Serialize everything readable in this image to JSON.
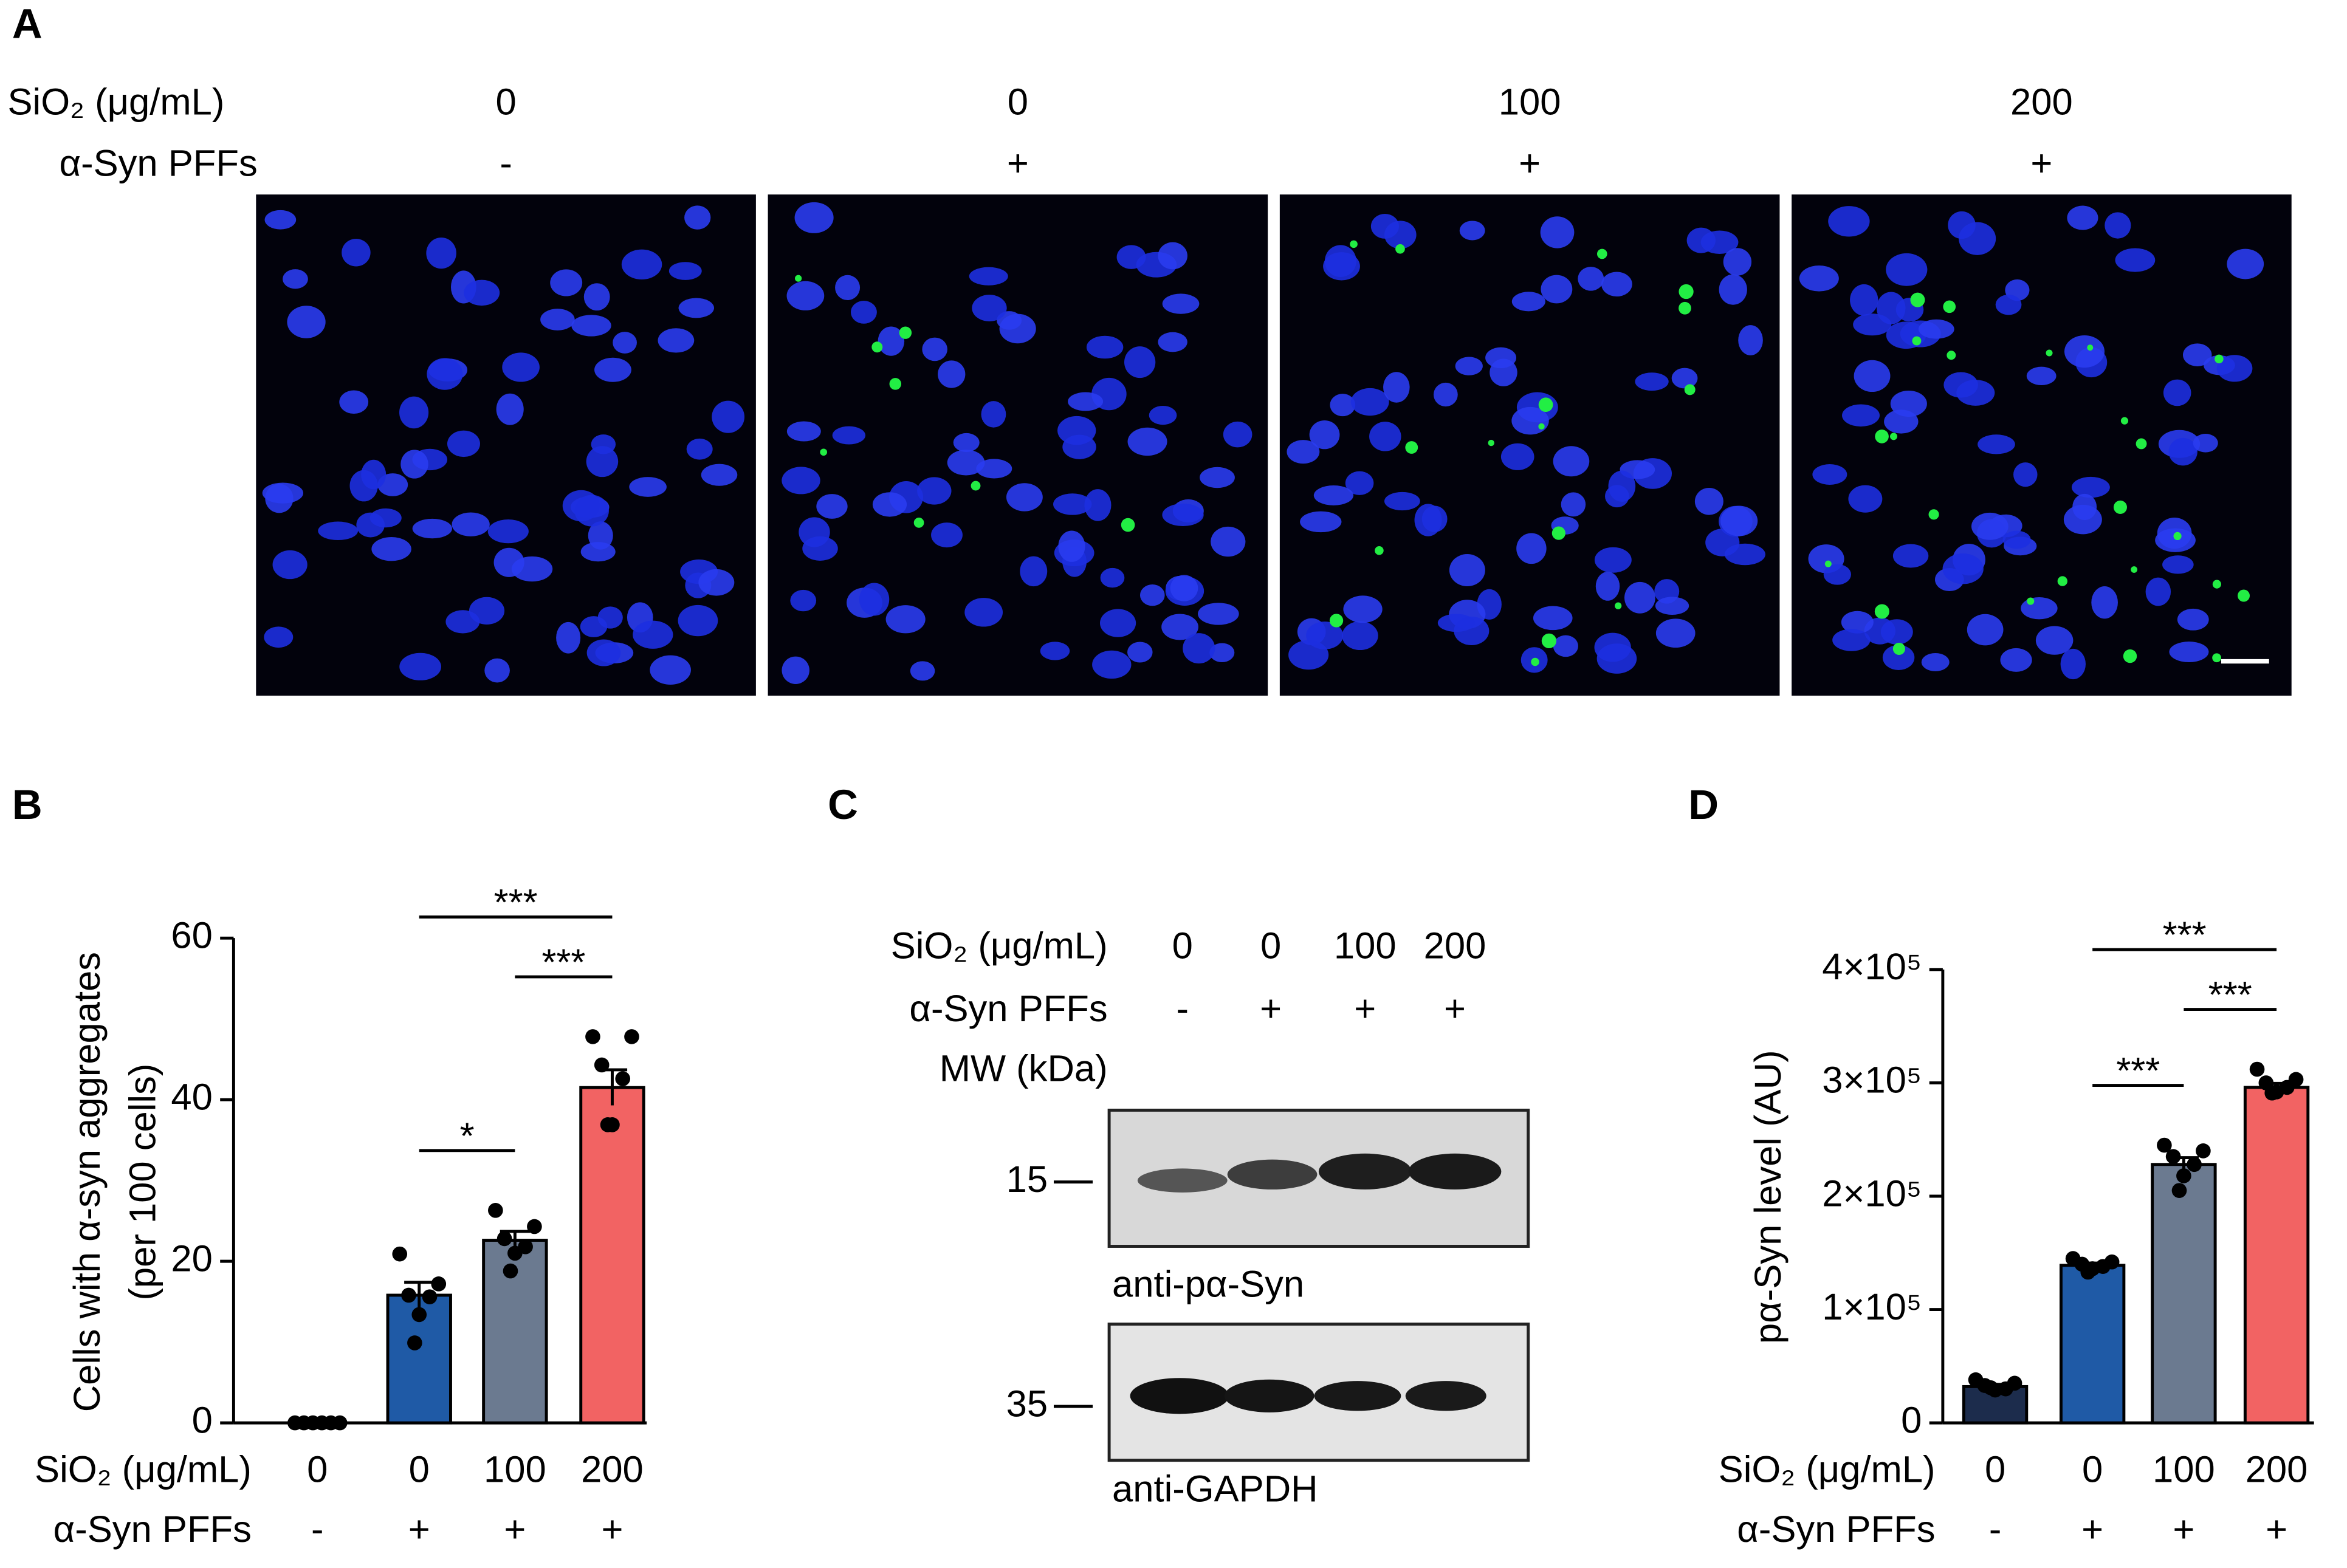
{
  "panel_labels": [
    "A",
    "B",
    "C",
    "D"
  ],
  "panel_a": {
    "row_labels": [
      "SiO₂ (μg/mL)",
      "α-Syn PFFs"
    ],
    "doses": [
      "0",
      "0",
      "100",
      "200"
    ],
    "pffs": [
      "-",
      "+",
      "+",
      "+"
    ]
  },
  "panel_c": {
    "row_labels": [
      "SiO₂ (μg/mL)",
      "α-Syn PFFs",
      "MW (kDa)"
    ],
    "doses": [
      "0",
      "0",
      "100",
      "200"
    ],
    "pffs": [
      "-",
      "+",
      "+",
      "+"
    ],
    "markers": [
      "15",
      "35"
    ],
    "blots": [
      "anti-pα-Syn",
      "anti-GAPDH"
    ]
  },
  "chart_data": [
    {
      "type": "bar",
      "ylabel": "Cells with α-syn aggregates",
      "ylabel2": "(per 100 cells)",
      "row_labels": [
        "SiO₂ (μg/mL)",
        "α-Syn PFFs"
      ],
      "categories": [
        "0",
        "0",
        "100",
        "200"
      ],
      "pffs": [
        "-",
        "+",
        "+",
        "+"
      ],
      "values": [
        0,
        15.8,
        22.6,
        41.5
      ],
      "errors": [
        0,
        1.6,
        1.1,
        2.2
      ],
      "points": [
        [
          0,
          0,
          0,
          0,
          0,
          0
        ],
        [
          20.9,
          17.2,
          15.8,
          15.6,
          13.4,
          9.9
        ],
        [
          26.3,
          24.3,
          22.8,
          21.8,
          21.0,
          18.8
        ],
        [
          47.8,
          47.8,
          44.3,
          42.6,
          36.9,
          36.9
        ]
      ],
      "colors": [
        "#1c2c4c",
        "#1f5aa6",
        "#6b7a90",
        "#f26363"
      ],
      "ylim": [
        0,
        60
      ],
      "yticks": [
        0,
        20,
        40,
        60
      ],
      "annotations": [
        {
          "text": "*",
          "from": 1,
          "to": 2
        },
        {
          "text": "***",
          "from": 2,
          "to": 3
        },
        {
          "text": "***",
          "from": 1,
          "to": 3
        }
      ]
    },
    {
      "type": "bar",
      "ylabel": "pα-Syn level (AU)",
      "row_labels": [
        "SiO₂ (μg/mL)",
        "α-Syn PFFs"
      ],
      "categories": [
        "0",
        "0",
        "100",
        "200"
      ],
      "pffs": [
        "-",
        "+",
        "+",
        "+"
      ],
      "values": [
        32000,
        139000,
        228000,
        296000
      ],
      "errors": [
        2000,
        2000,
        6000,
        3500
      ],
      "points": [
        [
          38000,
          35000,
          33000,
          30000,
          29000,
          31000
        ],
        [
          145000,
          142000,
          140000,
          138000,
          136000,
          133000
        ],
        [
          245000,
          240000,
          235000,
          228000,
          218000,
          205000
        ],
        [
          312000,
          303000,
          300000,
          296000,
          292000,
          291000
        ]
      ],
      "colors": [
        "#1c2c4c",
        "#1f5aa6",
        "#6b7a90",
        "#f26363"
      ],
      "ylim": [
        0,
        400000
      ],
      "yticks": [
        0,
        {
          "value": 100000,
          "label": "1×10⁵"
        },
        {
          "value": 200000,
          "label": "2×10⁵"
        },
        {
          "value": 300000,
          "label": "3×10⁵"
        },
        {
          "value": 400000,
          "label": "4×10⁵"
        }
      ],
      "annotations": [
        {
          "text": "***",
          "from": 1,
          "to": 2
        },
        {
          "text": "***",
          "from": 2,
          "to": 3
        },
        {
          "text": "***",
          "from": 1,
          "to": 3
        }
      ]
    }
  ]
}
